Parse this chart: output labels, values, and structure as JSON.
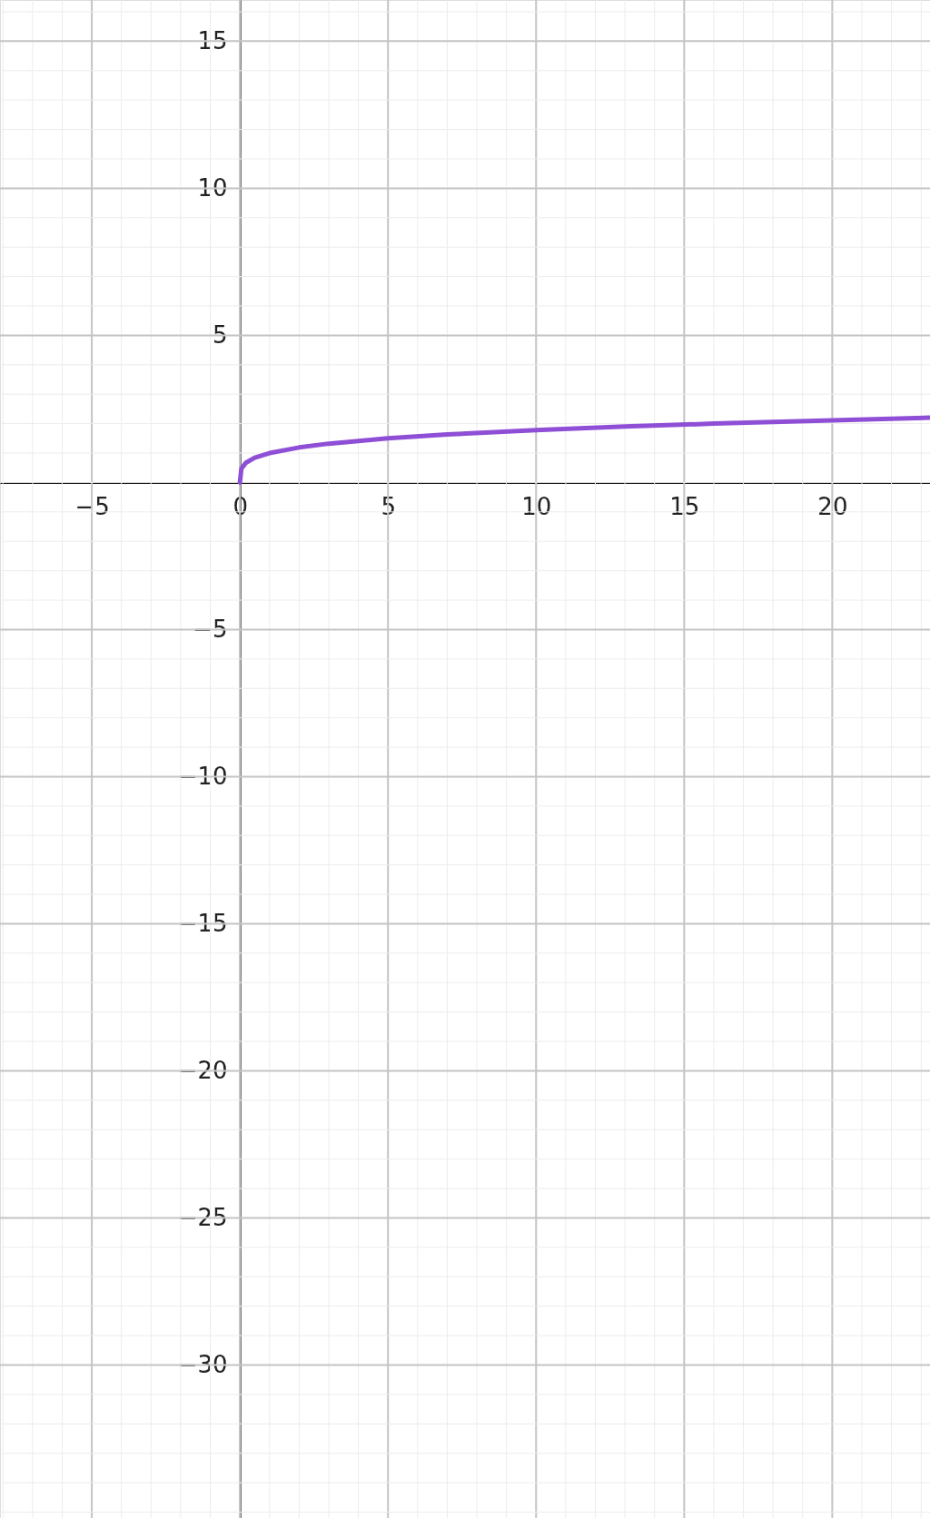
{
  "chart_data": {
    "type": "line",
    "x": [
      0,
      0.05,
      0.2,
      0.5,
      1,
      2,
      3,
      5,
      7,
      10,
      13,
      16,
      20,
      23.3
    ],
    "series": [
      {
        "color": "#8e4fd6",
        "values": [
          0,
          0.47,
          0.67,
          0.84,
          1,
          1.19,
          1.32,
          1.5,
          1.63,
          1.78,
          1.9,
          2,
          2.11,
          2.2
        ]
      }
    ],
    "xlim": [
      -8.1,
      23.3
    ],
    "ylim": [
      -35.2,
      16.4
    ],
    "xticks": [
      -5,
      0,
      5,
      10,
      15,
      20
    ],
    "yticks": [
      -30,
      -25,
      -20,
      -15,
      -10,
      -5,
      5,
      10,
      15
    ],
    "grid": true,
    "marker": "none",
    "line_style": "solid"
  }
}
